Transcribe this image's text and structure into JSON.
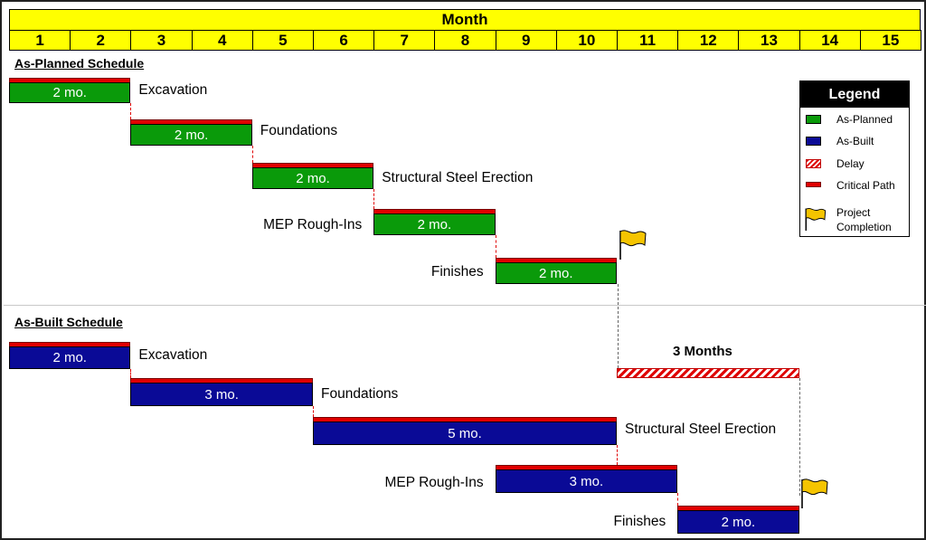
{
  "header": {
    "title": "Month",
    "months": [
      "1",
      "2",
      "3",
      "4",
      "5",
      "6",
      "7",
      "8",
      "9",
      "10",
      "11",
      "12",
      "13",
      "14",
      "15"
    ]
  },
  "planned": {
    "title": "As-Planned Schedule",
    "tasks": [
      {
        "name": "Excavation",
        "duration": "2 mo.",
        "start_month": 1,
        "months": 2
      },
      {
        "name": "Foundations",
        "duration": "2 mo.",
        "start_month": 3,
        "months": 2
      },
      {
        "name": "Structural Steel Erection",
        "duration": "2 mo.",
        "start_month": 5,
        "months": 2
      },
      {
        "name": "MEP Rough-Ins",
        "duration": "2 mo.",
        "start_month": 7,
        "months": 2
      },
      {
        "name": "Finishes",
        "duration": "2 mo.",
        "start_month": 9,
        "months": 2
      }
    ]
  },
  "built": {
    "title": "As-Built Schedule",
    "tasks": [
      {
        "name": "Excavation",
        "duration": "2 mo.",
        "start_month": 1,
        "months": 2
      },
      {
        "name": "Foundations",
        "duration": "3 mo.",
        "start_month": 3,
        "months": 3
      },
      {
        "name": "Structural Steel Erection",
        "duration": "5 mo.",
        "start_month": 6,
        "months": 5
      },
      {
        "name": "MEP Rough-Ins",
        "duration": "3 mo.",
        "start_month": 9,
        "months": 3
      },
      {
        "name": "Finishes",
        "duration": "2 mo.",
        "start_month": 12,
        "months": 2
      }
    ]
  },
  "delay": {
    "label": "3 Months",
    "start_month": 11,
    "months": 3
  },
  "legend": {
    "title": "Legend",
    "items": [
      {
        "label": "As-Planned",
        "swatch": "planned"
      },
      {
        "label": "As-Built",
        "swatch": "built"
      },
      {
        "label": "Delay",
        "swatch": "delay"
      },
      {
        "label": "Critical Path",
        "swatch": "critical"
      },
      {
        "label": "Project Completion",
        "swatch": "flag"
      }
    ]
  },
  "colors": {
    "header_fill": "#ffff00",
    "as_planned": "#0a9a0a",
    "as_built": "#0a0a96",
    "critical_path": "#e00000",
    "flag": "#f5c400"
  },
  "icons": {
    "completion": "flag-icon"
  }
}
